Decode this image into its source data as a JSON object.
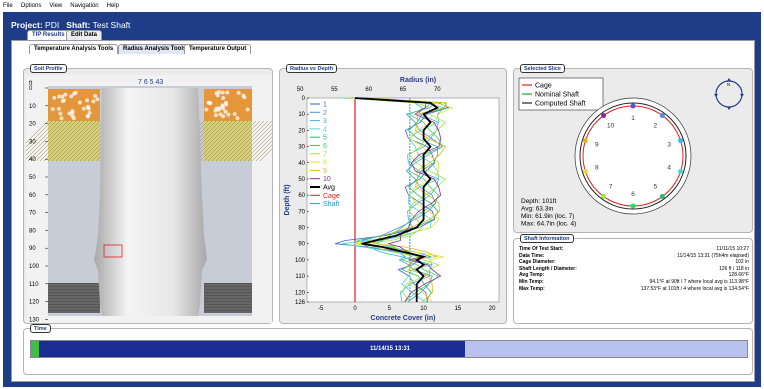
{
  "menu": [
    "File",
    "Options",
    "View",
    "Navigation",
    "Help"
  ],
  "project": {
    "label": "Project:",
    "name": "PDI",
    "shaft_label": "Shaft:",
    "shaft": "Test Shaft"
  },
  "top_tabs": [
    "TIP Results",
    "Edit Data"
  ],
  "sub_tabs": [
    "Temperature Analysis Tools",
    "Radius Analysis Tools",
    "Temperature Output"
  ],
  "soil": {
    "title": "Soil Profile",
    "unit": "ft",
    "depth_ticks": [
      "0",
      "10",
      "20",
      "30",
      "40",
      "50",
      "60",
      "70",
      "80",
      "90",
      "100",
      "110",
      "120",
      "130"
    ],
    "top_labels": "7 6 5 43"
  },
  "radius_panel": {
    "title": "Radius vs Depth"
  },
  "slice": {
    "title": "Selected Slice",
    "legend": [
      "Cage",
      "Nominal Shaft",
      "Computed Shaft"
    ],
    "colors": [
      "#e0201b",
      "#22a03a",
      "#222222"
    ],
    "points": [
      "1",
      "2",
      "3",
      "4",
      "5",
      "6",
      "7",
      "8",
      "9",
      "10"
    ],
    "stats": [
      "Depth: 101ft",
      "Avg: 63.3in",
      "Min: 61.9in (loc. 7)",
      "Max: 64.7in (loc. 4)"
    ]
  },
  "info": {
    "title": "Shaft Information",
    "rows": [
      {
        "k": "Time Of Test Start:",
        "v": "11/11/15 10:27"
      },
      {
        "k": "Data Time:",
        "v": "11/14/15 13:31 (75h4m elapsed)"
      },
      {
        "k": "Cage Diameter:",
        "v": "102 in"
      },
      {
        "k": "Shaft Length / Diameter:",
        "v": "126 ft / 118 in"
      },
      {
        "k": "Avg Temp:",
        "v": "128.66°F"
      },
      {
        "k": "Min Temp:",
        "v": "94.1°F at 90ft / 7 where local avg is 113.98°F"
      },
      {
        "k": "Max Temp:",
        "v": "137.53°F at 101ft / 4 where local avg is 134.54°F"
      }
    ]
  },
  "time": {
    "title": "Time",
    "value": "11/14/15 13:31",
    "progress": 0.6
  },
  "chart_data": {
    "type": "line",
    "title": "Radius (in)",
    "xlabel": "Concrete Cover (in)",
    "ylabel": "Depth (ft)",
    "top_ticks": [
      "50",
      "55",
      "60",
      "65",
      "70"
    ],
    "bottom_ticks": [
      "-5",
      "0",
      "5",
      "10",
      "15",
      "20"
    ],
    "y_ticks": [
      "0",
      "10",
      "20",
      "30",
      "40",
      "50",
      "60",
      "70",
      "80",
      "90",
      "100",
      "110",
      "120",
      "126"
    ],
    "xlim": [
      -7,
      21
    ],
    "ylim": [
      0,
      126
    ],
    "legend": [
      "1",
      "2",
      "3",
      "4",
      "5",
      "6",
      "7",
      "8",
      "9",
      "10",
      "Avg",
      "Cage",
      "Shaft"
    ],
    "colors": [
      "#3a63d6",
      "#4d8fe0",
      "#38b8e0",
      "#4fd5d5",
      "#29b873",
      "#38d45a",
      "#a4e040",
      "#e6e038",
      "#e0b81d",
      "#8a2a9a",
      "#000000",
      "#e0201b",
      "#2a9ad0"
    ],
    "cage_x": 0,
    "shaft_x": 8,
    "series_profile": {
      "depth": [
        0,
        3,
        6,
        10,
        15,
        20,
        25,
        30,
        35,
        40,
        45,
        50,
        55,
        60,
        65,
        70,
        75,
        80,
        85,
        88,
        90,
        92,
        95,
        98,
        100,
        103,
        106,
        110,
        115,
        120,
        126
      ],
      "avg": [
        0,
        11,
        12,
        10,
        11,
        10,
        10,
        11,
        10,
        10,
        10,
        11,
        10,
        10,
        10,
        10,
        10,
        9,
        6,
        3,
        1,
        4,
        7,
        10,
        9,
        10,
        9,
        10,
        9,
        9,
        9
      ]
    }
  }
}
